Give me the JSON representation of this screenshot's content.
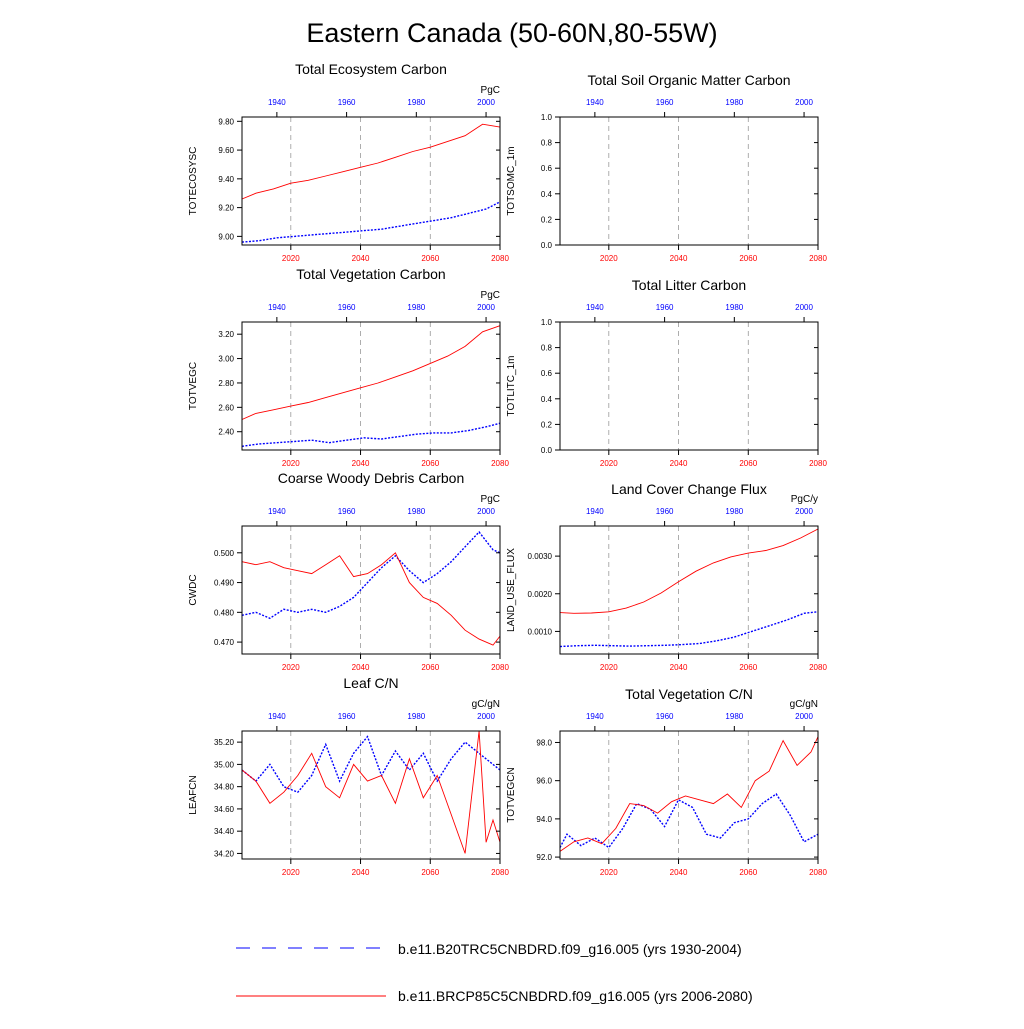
{
  "page_title": "Eastern Canada (50-60N,80-55W)",
  "colors": {
    "blue": "#0000ff",
    "red": "#ff0000",
    "axis": "#000000",
    "grid": "#999999"
  },
  "legend": [
    {
      "label": "b.e11.B20TRC5CNBDRD.f09_g16.005 (yrs 1930-2004)",
      "color": "#0000ff",
      "style": "dashed"
    },
    {
      "label": "b.e11.BRCP85C5CNBDRD.f09_g16.005 (yrs 2006-2080)",
      "color": "#ff0000",
      "style": "solid"
    }
  ],
  "chart_data": [
    {
      "type": "line",
      "title": "Total Ecosystem Carbon",
      "ylabel": "TOTECOSYSC",
      "units": "PgC",
      "ylim": [
        8.94,
        9.83
      ],
      "yticks": [
        9.0,
        9.2,
        9.4,
        9.6,
        9.8
      ],
      "ytick_labels": [
        "9.00",
        "9.20",
        "9.40",
        "9.60",
        "9.80"
      ],
      "bottom_xticks": [
        2020,
        2040,
        2060,
        2080
      ],
      "top_xticks": [
        1940,
        1960,
        1980,
        2000
      ],
      "series": [
        {
          "name": "b.e11.B20TRC5CNBDRD.f09_g16.005",
          "color": "#0000ff",
          "dashed": true,
          "x": [
            1930,
            1935,
            1940,
            1945,
            1950,
            1955,
            1960,
            1965,
            1970,
            1975,
            1980,
            1985,
            1990,
            1995,
            2000,
            2004
          ],
          "values": [
            8.96,
            8.97,
            8.99,
            9.0,
            9.01,
            9.02,
            9.03,
            9.04,
            9.05,
            9.07,
            9.09,
            9.11,
            9.13,
            9.16,
            9.19,
            9.24
          ]
        },
        {
          "name": "b.e11.BRCP85C5CNBDRD.f09_g16.005",
          "color": "#ff0000",
          "dashed": false,
          "x": [
            2006,
            2010,
            2015,
            2020,
            2025,
            2030,
            2035,
            2040,
            2045,
            2050,
            2055,
            2060,
            2065,
            2070,
            2075,
            2080
          ],
          "values": [
            9.26,
            9.3,
            9.33,
            9.37,
            9.39,
            9.42,
            9.45,
            9.48,
            9.51,
            9.55,
            9.59,
            9.62,
            9.66,
            9.7,
            9.78,
            9.76
          ]
        }
      ]
    },
    {
      "type": "line",
      "title": "Total Soil Organic Matter Carbon",
      "ylabel": "TOTSOMC_1m",
      "units": "",
      "ylim": [
        0,
        1
      ],
      "yticks": [
        0,
        0.2,
        0.4,
        0.6,
        0.8,
        1.0
      ],
      "ytick_labels": [
        "0.0",
        "0.2",
        "0.4",
        "0.6",
        "0.8",
        "1.0"
      ],
      "bottom_xticks": [
        2020,
        2040,
        2060,
        2080
      ],
      "top_xticks": [
        1940,
        1960,
        1980,
        2000
      ],
      "series": []
    },
    {
      "type": "line",
      "title": "Total Vegetation Carbon",
      "ylabel": "TOTVEGC",
      "units": "PgC",
      "ylim": [
        2.25,
        3.3
      ],
      "yticks": [
        2.4,
        2.6,
        2.8,
        3.0,
        3.2
      ],
      "ytick_labels": [
        "2.40",
        "2.60",
        "2.80",
        "3.00",
        "3.20"
      ],
      "bottom_xticks": [
        2020,
        2040,
        2060,
        2080
      ],
      "top_xticks": [
        1940,
        1960,
        1980,
        2000
      ],
      "series": [
        {
          "name": "b.e11.B20TRC5CNBDRD.f09_g16.005",
          "color": "#0000ff",
          "dashed": true,
          "x": [
            1930,
            1935,
            1940,
            1945,
            1950,
            1955,
            1960,
            1965,
            1970,
            1975,
            1980,
            1985,
            1990,
            1995,
            2000,
            2004
          ],
          "values": [
            2.28,
            2.3,
            2.31,
            2.32,
            2.33,
            2.31,
            2.33,
            2.35,
            2.34,
            2.36,
            2.38,
            2.39,
            2.39,
            2.41,
            2.44,
            2.47
          ]
        },
        {
          "name": "b.e11.BRCP85C5CNBDRD.f09_g16.005",
          "color": "#ff0000",
          "dashed": false,
          "x": [
            2006,
            2010,
            2015,
            2020,
            2025,
            2030,
            2035,
            2040,
            2045,
            2050,
            2055,
            2060,
            2065,
            2070,
            2075,
            2080
          ],
          "values": [
            2.5,
            2.55,
            2.58,
            2.61,
            2.64,
            2.68,
            2.72,
            2.76,
            2.8,
            2.85,
            2.9,
            2.96,
            3.02,
            3.1,
            3.22,
            3.27
          ]
        }
      ]
    },
    {
      "type": "line",
      "title": "Total Litter Carbon",
      "ylabel": "TOTLITC_1m",
      "units": "",
      "ylim": [
        0,
        1
      ],
      "yticks": [
        0,
        0.2,
        0.4,
        0.6,
        0.8,
        1.0
      ],
      "ytick_labels": [
        "0.0",
        "0.2",
        "0.4",
        "0.6",
        "0.8",
        "1.0"
      ],
      "bottom_xticks": [
        2020,
        2040,
        2060,
        2080
      ],
      "top_xticks": [
        1940,
        1960,
        1980,
        2000
      ],
      "series": []
    },
    {
      "type": "line",
      "title": "Coarse Woody Debris Carbon",
      "ylabel": "CWDC",
      "units": "PgC",
      "ylim": [
        0.466,
        0.509
      ],
      "yticks": [
        0.47,
        0.48,
        0.49,
        0.5
      ],
      "ytick_labels": [
        "0.470",
        "0.480",
        "0.490",
        "0.500"
      ],
      "bottom_xticks": [
        2020,
        2040,
        2060,
        2080
      ],
      "top_xticks": [
        1940,
        1960,
        1980,
        2000
      ],
      "series": [
        {
          "name": "b.e11.B20TRC5CNBDRD.f09_g16.005",
          "color": "#0000ff",
          "dashed": true,
          "x": [
            1930,
            1934,
            1938,
            1942,
            1946,
            1950,
            1954,
            1958,
            1962,
            1966,
            1970,
            1974,
            1978,
            1982,
            1986,
            1990,
            1994,
            1998,
            2002,
            2004
          ],
          "values": [
            0.479,
            0.48,
            0.478,
            0.481,
            0.48,
            0.481,
            0.48,
            0.482,
            0.485,
            0.49,
            0.495,
            0.499,
            0.494,
            0.49,
            0.493,
            0.497,
            0.502,
            0.507,
            0.501,
            0.5
          ]
        },
        {
          "name": "b.e11.BRCP85C5CNBDRD.f09_g16.005",
          "color": "#ff0000",
          "dashed": false,
          "x": [
            2006,
            2010,
            2014,
            2018,
            2022,
            2026,
            2030,
            2034,
            2038,
            2042,
            2046,
            2050,
            2054,
            2058,
            2062,
            2066,
            2070,
            2074,
            2078,
            2080
          ],
          "values": [
            0.497,
            0.496,
            0.497,
            0.495,
            0.494,
            0.493,
            0.496,
            0.499,
            0.492,
            0.493,
            0.496,
            0.5,
            0.49,
            0.485,
            0.483,
            0.479,
            0.474,
            0.471,
            0.469,
            0.472
          ]
        }
      ]
    },
    {
      "type": "line",
      "title": "Land Cover Change Flux",
      "ylabel": "LAND_USE_FLUX",
      "units": "PgC/y",
      "ylim": [
        0.0004,
        0.0038
      ],
      "yticks": [
        0.001,
        0.002,
        0.003
      ],
      "ytick_labels": [
        "0.0010",
        "0.0020",
        "0.0030"
      ],
      "bottom_xticks": [
        2020,
        2040,
        2060,
        2080
      ],
      "top_xticks": [
        1940,
        1960,
        1980,
        2000
      ],
      "series": [
        {
          "name": "b.e11.B20TRC5CNBDRD.f09_g16.005",
          "color": "#0000ff",
          "dashed": true,
          "x": [
            1930,
            1935,
            1940,
            1945,
            1950,
            1955,
            1960,
            1965,
            1970,
            1975,
            1980,
            1985,
            1990,
            1995,
            2000,
            2004
          ],
          "values": [
            0.0006,
            0.00062,
            0.00063,
            0.00062,
            0.00061,
            0.00062,
            0.00063,
            0.00065,
            0.00068,
            0.00075,
            0.00085,
            0.001,
            0.00115,
            0.0013,
            0.00148,
            0.00152
          ]
        },
        {
          "name": "b.e11.BRCP85C5CNBDRD.f09_g16.005",
          "color": "#ff0000",
          "dashed": false,
          "x": [
            2006,
            2010,
            2015,
            2020,
            2025,
            2030,
            2035,
            2040,
            2045,
            2050,
            2055,
            2060,
            2065,
            2070,
            2075,
            2080
          ],
          "values": [
            0.0015,
            0.00148,
            0.00149,
            0.00152,
            0.00162,
            0.00178,
            0.00202,
            0.00232,
            0.0026,
            0.00282,
            0.00298,
            0.00308,
            0.00315,
            0.00328,
            0.00348,
            0.00372
          ]
        }
      ]
    },
    {
      "type": "line",
      "title": "Leaf C/N",
      "ylabel": "LEAFCN",
      "units": "gC/gN",
      "ylim": [
        34.15,
        35.3
      ],
      "yticks": [
        34.2,
        34.4,
        34.6,
        34.8,
        35.0,
        35.2
      ],
      "ytick_labels": [
        "34.20",
        "34.40",
        "34.60",
        "34.80",
        "35.00",
        "35.20"
      ],
      "bottom_xticks": [
        2020,
        2040,
        2060,
        2080
      ],
      "top_xticks": [
        1940,
        1960,
        1980,
        2000
      ],
      "series": [
        {
          "name": "b.e11.B20TRC5CNBDRD.f09_g16.005",
          "color": "#0000ff",
          "dashed": true,
          "x": [
            1930,
            1934,
            1938,
            1942,
            1946,
            1950,
            1954,
            1958,
            1962,
            1966,
            1970,
            1974,
            1978,
            1982,
            1986,
            1990,
            1994,
            1998,
            2002,
            2004
          ],
          "values": [
            34.95,
            34.85,
            35.0,
            34.8,
            34.75,
            34.9,
            35.18,
            34.85,
            35.1,
            35.25,
            34.9,
            35.12,
            34.95,
            35.1,
            34.85,
            35.05,
            35.2,
            35.1,
            35.0,
            34.95
          ]
        },
        {
          "name": "b.e11.BRCP85C5CNBDRD.f09_g16.005",
          "color": "#ff0000",
          "dashed": false,
          "x": [
            2006,
            2010,
            2014,
            2018,
            2022,
            2026,
            2030,
            2034,
            2038,
            2042,
            2046,
            2050,
            2054,
            2058,
            2062,
            2066,
            2070,
            2074,
            2076,
            2078,
            2080
          ],
          "values": [
            34.95,
            34.85,
            34.65,
            34.75,
            34.9,
            35.1,
            34.8,
            34.7,
            35.0,
            34.85,
            34.9,
            34.65,
            35.05,
            34.7,
            34.9,
            34.55,
            34.2,
            35.3,
            34.3,
            34.5,
            34.3
          ]
        }
      ]
    },
    {
      "type": "line",
      "title": "Total Vegetation C/N",
      "ylabel": "TOTVEGCN",
      "units": "gC/gN",
      "ylim": [
        91.9,
        98.6
      ],
      "yticks": [
        92.0,
        94.0,
        96.0,
        98.0
      ],
      "ytick_labels": [
        "92.0",
        "94.0",
        "96.0",
        "98.0"
      ],
      "bottom_xticks": [
        2020,
        2040,
        2060,
        2080
      ],
      "top_xticks": [
        1940,
        1960,
        1980,
        2000
      ],
      "series": [
        {
          "name": "b.e11.B20TRC5CNBDRD.f09_g16.005",
          "color": "#0000ff",
          "dashed": true,
          "x": [
            1930,
            1932,
            1936,
            1940,
            1944,
            1948,
            1952,
            1956,
            1960,
            1964,
            1968,
            1972,
            1976,
            1980,
            1984,
            1988,
            1992,
            1996,
            2000,
            2004
          ],
          "values": [
            92.5,
            93.2,
            92.6,
            93.0,
            92.5,
            93.5,
            94.8,
            94.5,
            93.6,
            95.0,
            94.6,
            93.2,
            93.0,
            93.8,
            94.0,
            94.8,
            95.3,
            94.2,
            92.8,
            93.2
          ]
        },
        {
          "name": "b.e11.BRCP85C5CNBDRD.f09_g16.005",
          "color": "#ff0000",
          "dashed": false,
          "x": [
            2006,
            2010,
            2014,
            2018,
            2022,
            2026,
            2030,
            2034,
            2038,
            2042,
            2046,
            2050,
            2054,
            2058,
            2062,
            2066,
            2070,
            2074,
            2078,
            2080
          ],
          "values": [
            92.3,
            92.8,
            93.0,
            92.7,
            93.5,
            94.8,
            94.7,
            94.3,
            94.9,
            95.2,
            95.0,
            94.8,
            95.3,
            94.6,
            96.0,
            96.5,
            98.1,
            96.8,
            97.5,
            98.3
          ]
        }
      ]
    }
  ]
}
